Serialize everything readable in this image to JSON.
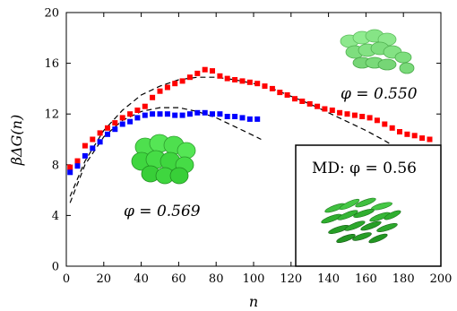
{
  "chart_data": {
    "type": "scatter",
    "xlabel": "n",
    "ylabel": "βΔG(n)",
    "xlim": [
      0,
      200
    ],
    "ylim": [
      0,
      20
    ],
    "x_ticks": [
      "0",
      "20",
      "40",
      "60",
      "80",
      "100",
      "120",
      "140",
      "160",
      "180",
      "200"
    ],
    "y_ticks": [
      "0",
      "4",
      "8",
      "12",
      "16",
      "20"
    ],
    "grid": false,
    "series": [
      {
        "key": "phi_0550",
        "color": "#ff0000",
        "marker": "square",
        "points": [
          [
            2,
            7.8
          ],
          [
            6,
            8.3
          ],
          [
            10,
            9.5
          ],
          [
            14,
            10.0
          ],
          [
            18,
            10.5
          ],
          [
            22,
            10.9
          ],
          [
            26,
            11.3
          ],
          [
            30,
            11.7
          ],
          [
            34,
            12.0
          ],
          [
            38,
            12.3
          ],
          [
            42,
            12.6
          ],
          [
            46,
            13.3
          ],
          [
            50,
            13.8
          ],
          [
            54,
            14.1
          ],
          [
            58,
            14.4
          ],
          [
            62,
            14.6
          ],
          [
            66,
            14.9
          ],
          [
            70,
            15.2
          ],
          [
            74,
            15.5
          ],
          [
            78,
            15.4
          ],
          [
            82,
            15.0
          ],
          [
            86,
            14.8
          ],
          [
            90,
            14.7
          ],
          [
            94,
            14.6
          ],
          [
            98,
            14.5
          ],
          [
            102,
            14.4
          ],
          [
            106,
            14.2
          ],
          [
            110,
            14.0
          ],
          [
            114,
            13.7
          ],
          [
            118,
            13.5
          ],
          [
            122,
            13.2
          ],
          [
            126,
            13.0
          ],
          [
            130,
            12.8
          ],
          [
            134,
            12.6
          ],
          [
            138,
            12.4
          ],
          [
            142,
            12.3
          ],
          [
            146,
            12.1
          ],
          [
            150,
            12.0
          ],
          [
            154,
            11.9
          ],
          [
            158,
            11.8
          ],
          [
            162,
            11.7
          ],
          [
            166,
            11.5
          ],
          [
            170,
            11.2
          ],
          [
            174,
            10.9
          ],
          [
            178,
            10.6
          ],
          [
            182,
            10.4
          ],
          [
            186,
            10.3
          ],
          [
            190,
            10.1
          ],
          [
            194,
            10.0
          ]
        ]
      },
      {
        "key": "phi_0569",
        "color": "#0000ff",
        "marker": "square",
        "points": [
          [
            2,
            7.4
          ],
          [
            6,
            7.9
          ],
          [
            10,
            8.7
          ],
          [
            14,
            9.3
          ],
          [
            18,
            9.8
          ],
          [
            22,
            10.4
          ],
          [
            26,
            10.8
          ],
          [
            30,
            11.2
          ],
          [
            34,
            11.4
          ],
          [
            38,
            11.7
          ],
          [
            42,
            11.9
          ],
          [
            46,
            12.0
          ],
          [
            50,
            12.0
          ],
          [
            54,
            12.0
          ],
          [
            58,
            11.9
          ],
          [
            62,
            11.9
          ],
          [
            66,
            12.0
          ],
          [
            70,
            12.1
          ],
          [
            74,
            12.1
          ],
          [
            78,
            12.0
          ],
          [
            82,
            12.0
          ],
          [
            86,
            11.8
          ],
          [
            90,
            11.8
          ],
          [
            94,
            11.7
          ],
          [
            98,
            11.6
          ],
          [
            102,
            11.6
          ]
        ]
      }
    ],
    "fit_curves": [
      {
        "key": "fit_0550",
        "style": "dashed",
        "color": "#000000",
        "points": [
          [
            2,
            5.5
          ],
          [
            10,
            8.3
          ],
          [
            20,
            10.7
          ],
          [
            30,
            12.3
          ],
          [
            40,
            13.5
          ],
          [
            50,
            14.2
          ],
          [
            60,
            14.7
          ],
          [
            70,
            14.9
          ],
          [
            80,
            14.9
          ],
          [
            90,
            14.7
          ],
          [
            100,
            14.4
          ],
          [
            110,
            14.0
          ],
          [
            120,
            13.4
          ],
          [
            130,
            12.8
          ],
          [
            140,
            12.1
          ],
          [
            150,
            11.4
          ],
          [
            160,
            10.7
          ],
          [
            170,
            9.9
          ],
          [
            180,
            9.0
          ],
          [
            188,
            8.1
          ]
        ]
      },
      {
        "key": "fit_0569",
        "style": "dashed",
        "color": "#000000",
        "points": [
          [
            2,
            5.0
          ],
          [
            10,
            8.0
          ],
          [
            20,
            10.2
          ],
          [
            30,
            11.5
          ],
          [
            40,
            12.2
          ],
          [
            50,
            12.5
          ],
          [
            60,
            12.5
          ],
          [
            70,
            12.2
          ],
          [
            80,
            11.7
          ],
          [
            90,
            11.0
          ],
          [
            100,
            10.3
          ],
          [
            104,
            10.0
          ]
        ]
      }
    ],
    "annotations": {
      "phi_0550": "φ = 0.550",
      "phi_0569": "φ = 0.569",
      "md": "MD: φ = 0.56"
    }
  }
}
